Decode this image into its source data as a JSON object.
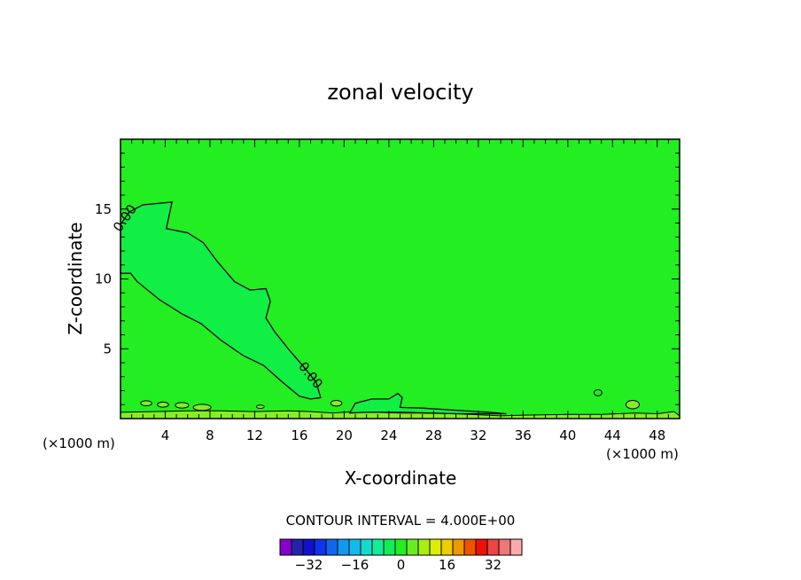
{
  "chart_data": {
    "type": "heatmap",
    "title": "zonal velocity",
    "xlabel": "X-coordinate",
    "ylabel": "Z-coordinate",
    "x_unit": "(×1000 m)",
    "x_unit_left": "(×1000 m)",
    "xlim": [
      0,
      50
    ],
    "ylim": [
      0,
      20
    ],
    "xticks": [
      4,
      8,
      12,
      16,
      20,
      24,
      28,
      32,
      36,
      40,
      44,
      48
    ],
    "xtick_labels": [
      "4",
      "8",
      "12",
      "16",
      "20",
      "24",
      "28",
      "32",
      "36",
      "40",
      "44",
      "48"
    ],
    "yticks": [
      5,
      10,
      15
    ],
    "ytick_labels": [
      "5",
      "10",
      "15"
    ],
    "background_color": "#22ee22",
    "contour_interval_text": "CONTOUR INTERVAL = 4.000E+00",
    "contour_label": "0.00",
    "contour_label_count": 2,
    "negative_region": {
      "fill": "#11ee44",
      "outline": [
        [
          0,
          13.9
        ],
        [
          0.8,
          14.8
        ],
        [
          2.0,
          15.3
        ],
        [
          4.6,
          15.5
        ],
        [
          4.1,
          13.6
        ],
        [
          6.0,
          13.3
        ],
        [
          7.4,
          12.6
        ],
        [
          8.6,
          11.3
        ],
        [
          10.2,
          9.8
        ],
        [
          11.6,
          9.2
        ],
        [
          13.0,
          9.3
        ],
        [
          13.4,
          8.4
        ],
        [
          13.0,
          7.2
        ],
        [
          13.8,
          6.2
        ],
        [
          15.0,
          5.0
        ],
        [
          16.5,
          3.6
        ],
        [
          17.5,
          2.6
        ],
        [
          17.9,
          1.5
        ],
        [
          17.0,
          1.4
        ],
        [
          16.0,
          1.6
        ],
        [
          14.5,
          2.6
        ],
        [
          12.8,
          3.8
        ],
        [
          11.0,
          4.5
        ],
        [
          9.0,
          5.6
        ],
        [
          7.2,
          6.8
        ],
        [
          5.5,
          7.5
        ],
        [
          3.5,
          8.5
        ],
        [
          1.5,
          9.8
        ],
        [
          0.9,
          10.4
        ],
        [
          0,
          10.4
        ]
      ]
    },
    "surface_band": {
      "fill": "#88ee22",
      "outline": [
        [
          0,
          0
        ],
        [
          0,
          0.45
        ],
        [
          3,
          0.5
        ],
        [
          6,
          0.55
        ],
        [
          9,
          0.55
        ],
        [
          12,
          0.5
        ],
        [
          15,
          0.55
        ],
        [
          17,
          0.5
        ],
        [
          19,
          0.4
        ],
        [
          21,
          0.5
        ],
        [
          25,
          0.4
        ],
        [
          27,
          0.4
        ],
        [
          30,
          0.35
        ],
        [
          34,
          0.2
        ],
        [
          36,
          0.25
        ],
        [
          40,
          0.3
        ],
        [
          43,
          0.3
        ],
        [
          46,
          0.4
        ],
        [
          48,
          0.35
        ],
        [
          49.5,
          0.5
        ],
        [
          50,
          0.2
        ],
        [
          50,
          0
        ]
      ]
    },
    "secondary_region": {
      "fill": "#11ee44",
      "outline": [
        [
          20.5,
          0.4
        ],
        [
          21.0,
          1.1
        ],
        [
          22.5,
          1.4
        ],
        [
          24.0,
          1.4
        ],
        [
          24.8,
          1.8
        ],
        [
          25.2,
          1.5
        ],
        [
          25.0,
          0.8
        ],
        [
          27.0,
          0.75
        ],
        [
          30.0,
          0.6
        ],
        [
          33.0,
          0.45
        ],
        [
          34.5,
          0.35
        ],
        [
          30.0,
          0.35
        ],
        [
          25.0,
          0.45
        ],
        [
          22.0,
          0.45
        ]
      ]
    },
    "small_blobs": [
      {
        "fill": "#88ee22",
        "cx": 2.3,
        "cy": 1.1,
        "rx": 0.5,
        "ry": 0.18
      },
      {
        "fill": "#88ee22",
        "cx": 3.8,
        "cy": 1.0,
        "rx": 0.5,
        "ry": 0.18
      },
      {
        "fill": "#88ee22",
        "cx": 5.5,
        "cy": 0.95,
        "rx": 0.6,
        "ry": 0.2
      },
      {
        "fill": "#88ee22",
        "cx": 7.3,
        "cy": 0.8,
        "rx": 0.8,
        "ry": 0.22
      },
      {
        "fill": "#88ee22",
        "cx": 12.5,
        "cy": 0.85,
        "rx": 0.35,
        "ry": 0.12
      },
      {
        "fill": "#88ee22",
        "cx": 19.3,
        "cy": 1.1,
        "rx": 0.5,
        "ry": 0.2
      },
      {
        "fill": "#22ee22",
        "cx": 42.7,
        "cy": 1.85,
        "rx": 0.35,
        "ry": 0.22
      },
      {
        "fill": "#88ee22",
        "cx": 45.8,
        "cy": 1.0,
        "rx": 0.6,
        "ry": 0.3
      }
    ],
    "colorbar": {
      "colors": [
        "#8800cc",
        "#2222aa",
        "#1111cc",
        "#1133ee",
        "#1166ee",
        "#1199ee",
        "#11bbee",
        "#11ddcc",
        "#11ee99",
        "#11ee55",
        "#22ee22",
        "#66ee22",
        "#aaee11",
        "#ddee00",
        "#eecc00",
        "#ee9900",
        "#ee5500",
        "#ee1100",
        "#ee4444",
        "#ee7777",
        "#ffaaaa"
      ],
      "labels": [
        "-32",
        "-16",
        "0",
        "16",
        "32"
      ],
      "label_positions": [
        2.5,
        6.5,
        10.5,
        14.5,
        18.5
      ]
    }
  }
}
